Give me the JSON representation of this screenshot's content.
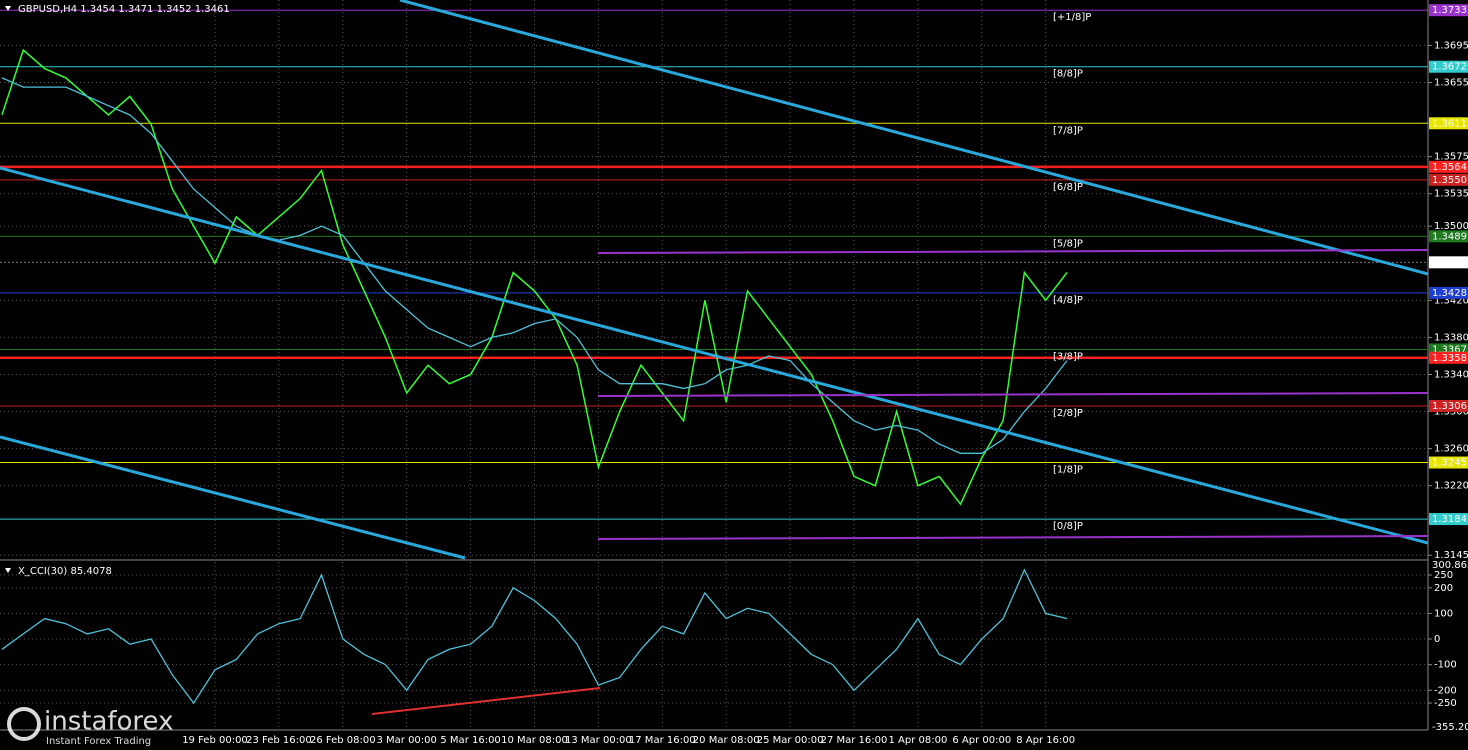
{
  "chart_data": [
    {
      "type": "line",
      "title": "GBPUSD,H4  1.3454 1.3471 1.3452 1.3461",
      "categories": [
        null,
        null,
        null,
        null,
        null,
        null,
        null,
        null,
        null,
        null,
        "19 Feb 00:00",
        null,
        null,
        "23 Feb 16:00",
        null,
        null,
        "26 Feb 08:00",
        null,
        null,
        "3 Mar 00:00",
        null,
        null,
        "5 Mar 16:00",
        null,
        null,
        "10 Mar 08:00",
        null,
        null,
        "13 Mar 00:00",
        null,
        null,
        "17 Mar 16:00",
        null,
        null,
        "20 Mar 08:00",
        null,
        null,
        "25 Mar 00:00",
        null,
        null,
        "27 Mar 16:00",
        null,
        null,
        "1 Apr 08:00",
        null,
        null,
        "6 Apr 00:00",
        null,
        null,
        "8 Apr 16:00",
        null
      ],
      "series": [
        {
          "color": "#33ff33",
          "values": [
            1.362,
            1.369,
            1.367,
            1.366,
            1.364,
            1.362,
            1.364,
            1.361,
            1.354,
            1.35,
            1.346,
            1.351,
            1.349,
            1.351,
            1.353,
            1.356,
            1.348,
            1.343,
            1.338,
            1.332,
            1.335,
            1.333,
            1.334,
            1.338,
            1.345,
            1.343,
            1.34,
            1.335,
            1.324,
            1.33,
            1.335,
            1.332,
            1.329,
            1.342,
            1.331,
            1.343,
            1.34,
            1.337,
            1.334,
            1.329,
            1.323,
            1.322,
            1.33,
            1.322,
            1.323,
            1.32,
            1.325,
            1.329,
            1.345,
            1.342,
            1.345
          ]
        },
        {
          "color": "#4fc3d9",
          "values": [
            1.366,
            1.365,
            1.365,
            1.365,
            1.364,
            1.363,
            1.362,
            1.36,
            1.357,
            1.354,
            1.352,
            1.35,
            1.349,
            1.3485,
            1.349,
            1.35,
            1.349,
            1.346,
            1.343,
            1.341,
            1.339,
            1.338,
            1.337,
            1.338,
            1.3385,
            1.3395,
            1.34,
            1.338,
            1.3345,
            1.333,
            1.333,
            1.333,
            1.3325,
            1.333,
            1.3345,
            1.335,
            1.336,
            1.3355,
            1.333,
            1.331,
            1.329,
            1.328,
            1.3285,
            1.328,
            1.3265,
            1.3255,
            1.3255,
            1.327,
            1.33,
            1.3325,
            1.3355
          ]
        }
      ],
      "ylim": [
        1.3142,
        1.3744
      ],
      "yticks": [
        1.3695,
        1.3655,
        1.3575,
        1.3535,
        {
          "value": 1.35,
          "label": "1.3500"
        },
        {
          "value": 1.342,
          "label": "1.3420"
        },
        {
          "value": 1.338,
          "label": "1.3380"
        },
        {
          "value": 1.334,
          "label": "1.3340"
        },
        {
          "value": 1.33,
          "label": "1.3300"
        },
        {
          "value": 1.326,
          "label": "1.3260"
        },
        {
          "value": 1.322,
          "label": "1.3220"
        },
        1.3145
      ],
      "grid": true,
      "last_price": 1.3461,
      "levels": [
        {
          "tag": "[+1/8]P",
          "value": 1.3733,
          "color": "#9933cc"
        },
        {
          "tag": "[8/8]P",
          "value": 1.3672,
          "color": "#33cccc"
        },
        {
          "tag": "[7/8]P",
          "value": 1.3611,
          "color": "#e6e600"
        },
        {
          "value": 1.3564,
          "color": "#ff2020"
        },
        {
          "tag": "[6/8]P",
          "value": {
            "value": 1.355,
            "label": "1.3550"
          },
          "color": "#cc2222"
        },
        {
          "tag": "[5/8]P",
          "value": 1.3489,
          "color": "#1f7a1f"
        },
        {
          "tag": "[4/8]P",
          "value": 1.3428,
          "color": "#1f3fd0"
        },
        {
          "tag": "[3/8]P",
          "value": 1.3367,
          "color": "#1f7a1f"
        },
        {
          "value": 1.3358,
          "color": "#ff2020"
        },
        {
          "tag": "[2/8]P",
          "value": 1.3306,
          "color": "#cc2222"
        },
        {
          "tag": "[1/8]P",
          "value": 1.3245,
          "color": "#e6e600"
        },
        {
          "tag": "[0/8]P",
          "value": 1.3184,
          "color": "#33cccc"
        }
      ]
    },
    {
      "type": "line",
      "title": "X_CCI(30) 85.4078",
      "series": [
        {
          "color": "#4fc3d9",
          "values": [
            -40,
            20,
            80,
            60,
            20,
            40,
            -20,
            0,
            -140,
            -250,
            -120,
            -80,
            20,
            60,
            80,
            250,
            0,
            -60,
            -100,
            -200,
            -80,
            -40,
            -20,
            50,
            200,
            150,
            80,
            -20,
            -180,
            -150,
            -40,
            50,
            20,
            180,
            80,
            120,
            100,
            20,
            -60,
            -100,
            -200,
            -120,
            -40,
            80,
            -60,
            -100,
            0,
            80,
            270,
            100,
            80
          ]
        }
      ],
      "ylim": [
        -355.206,
        300.8623
      ],
      "yticks": [
        250,
        200,
        100,
        0,
        -100,
        -200,
        -250
      ]
    }
  ]
}
